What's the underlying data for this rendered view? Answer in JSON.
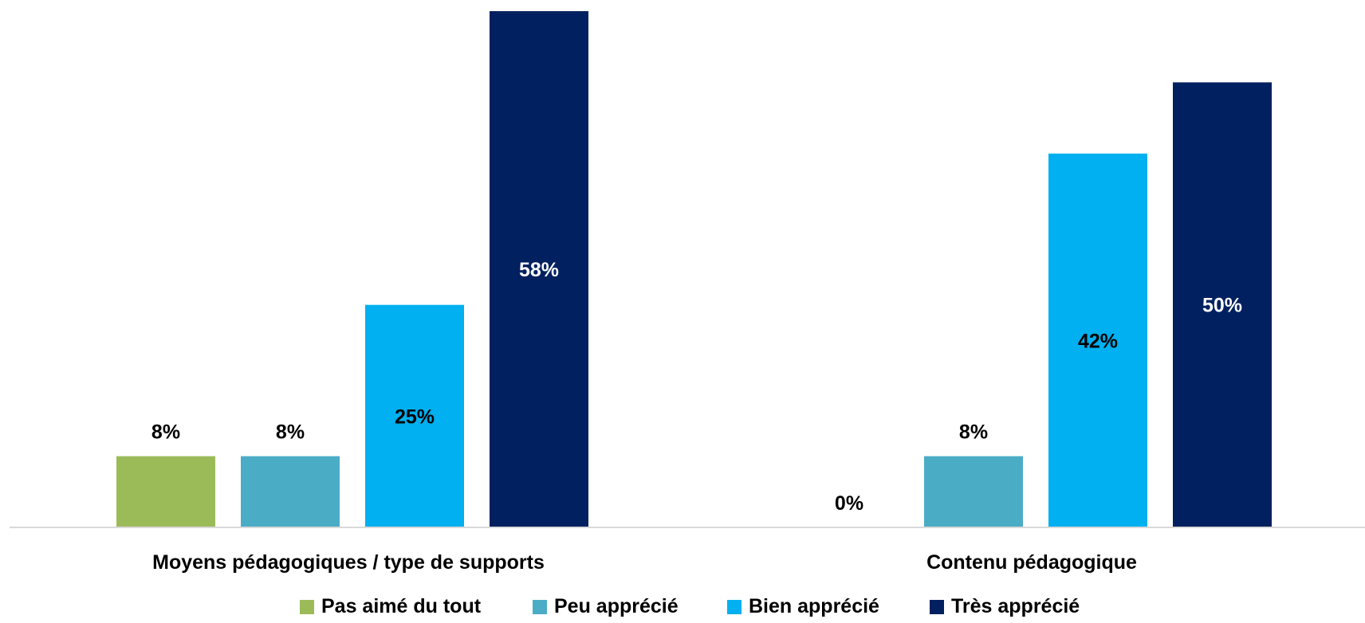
{
  "chart_data": {
    "type": "bar",
    "categories": [
      "Moyens pédagogiques / type de supports",
      "Contenu pédagogique"
    ],
    "series": [
      {
        "name": "Pas aimé du tout",
        "color": "#9BBB59",
        "values": [
          8,
          0
        ],
        "labels": [
          "8%",
          "0%"
        ]
      },
      {
        "name": "Peu apprécié",
        "color": "#4BACC6",
        "values": [
          8,
          8
        ],
        "labels": [
          "8%",
          "8%"
        ]
      },
      {
        "name": "Bien apprécié",
        "color": "#00B0F0",
        "values": [
          25,
          42
        ],
        "labels": [
          "25%",
          "42%"
        ]
      },
      {
        "name": "Très apprécié",
        "color": "#002060",
        "values": [
          58,
          50
        ],
        "labels": [
          "58%",
          "50%"
        ]
      }
    ],
    "ylim": [
      0,
      58
    ],
    "grid": false,
    "legend_position": "bottom"
  }
}
